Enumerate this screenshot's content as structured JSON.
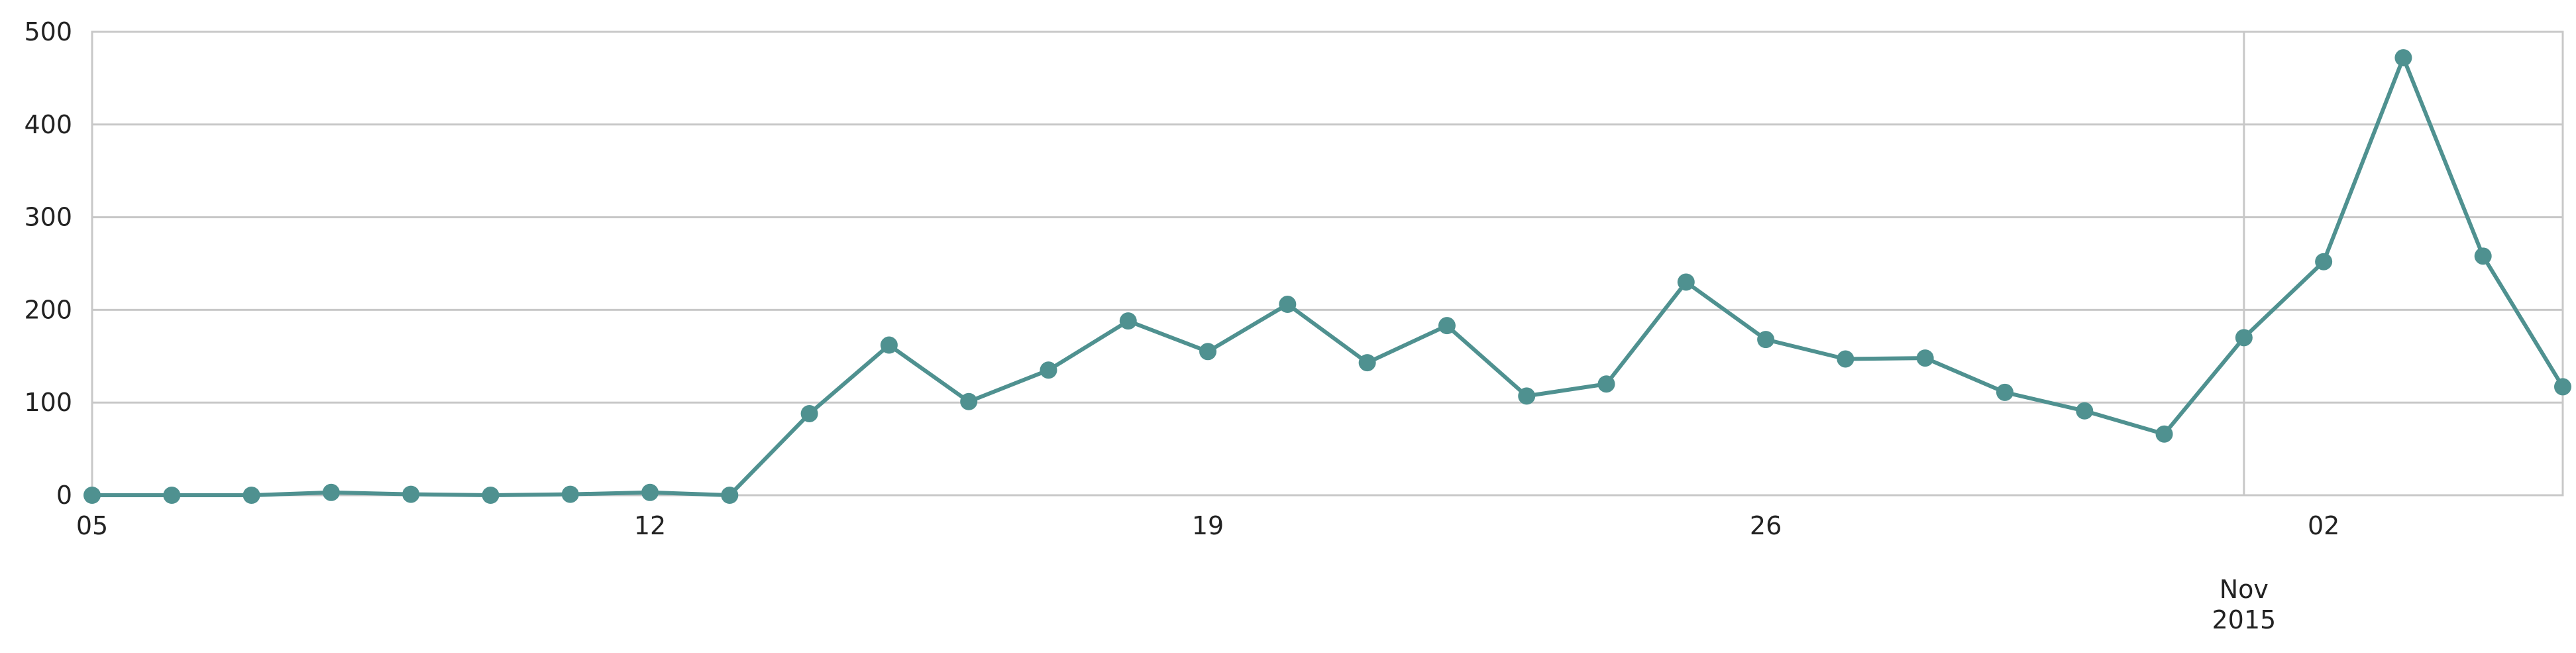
{
  "chart_data": {
    "type": "line",
    "title": "",
    "xlabel": "",
    "ylabel": "",
    "x_start": "2015-10-05",
    "x_end": "2015-11-05",
    "ylim": [
      0,
      500
    ],
    "y_ticks": [
      0,
      100,
      200,
      300,
      400,
      500
    ],
    "y_tick_labels": [
      "0",
      "100",
      "200",
      "300",
      "400",
      "500"
    ],
    "x_ticks": [
      {
        "date": "2015-10-05",
        "label": "05"
      },
      {
        "date": "2015-10-12",
        "label": "12"
      },
      {
        "date": "2015-10-19",
        "label": "19"
      },
      {
        "date": "2015-10-26",
        "label": "26"
      },
      {
        "date": "2015-11-02",
        "label": "02"
      }
    ],
    "month_marker": {
      "date": "2015-11-01",
      "label_month": "Nov",
      "label_year": "2015"
    },
    "grid": "horizontal",
    "legend": "none",
    "color": "#4f9190",
    "series": [
      {
        "x": [
          "2015-10-05",
          "2015-10-06",
          "2015-10-07",
          "2015-10-08",
          "2015-10-09",
          "2015-10-10",
          "2015-10-11",
          "2015-10-12",
          "2015-10-13",
          "2015-10-14",
          "2015-10-15",
          "2015-10-16",
          "2015-10-17",
          "2015-10-18",
          "2015-10-19",
          "2015-10-20",
          "2015-10-21",
          "2015-10-22",
          "2015-10-23",
          "2015-10-24",
          "2015-10-25",
          "2015-10-26",
          "2015-10-27",
          "2015-10-28",
          "2015-10-29",
          "2015-10-30",
          "2015-10-31",
          "2015-11-01",
          "2015-11-02",
          "2015-11-03",
          "2015-11-04",
          "2015-11-05"
        ],
        "values": [
          0,
          0,
          0,
          3,
          1,
          0,
          1,
          3,
          0,
          88,
          162,
          101,
          135,
          188,
          155,
          206,
          143,
          183,
          107,
          120,
          230,
          168,
          147,
          148,
          111,
          91,
          66,
          170,
          252,
          472,
          258,
          117
        ]
      }
    ]
  }
}
